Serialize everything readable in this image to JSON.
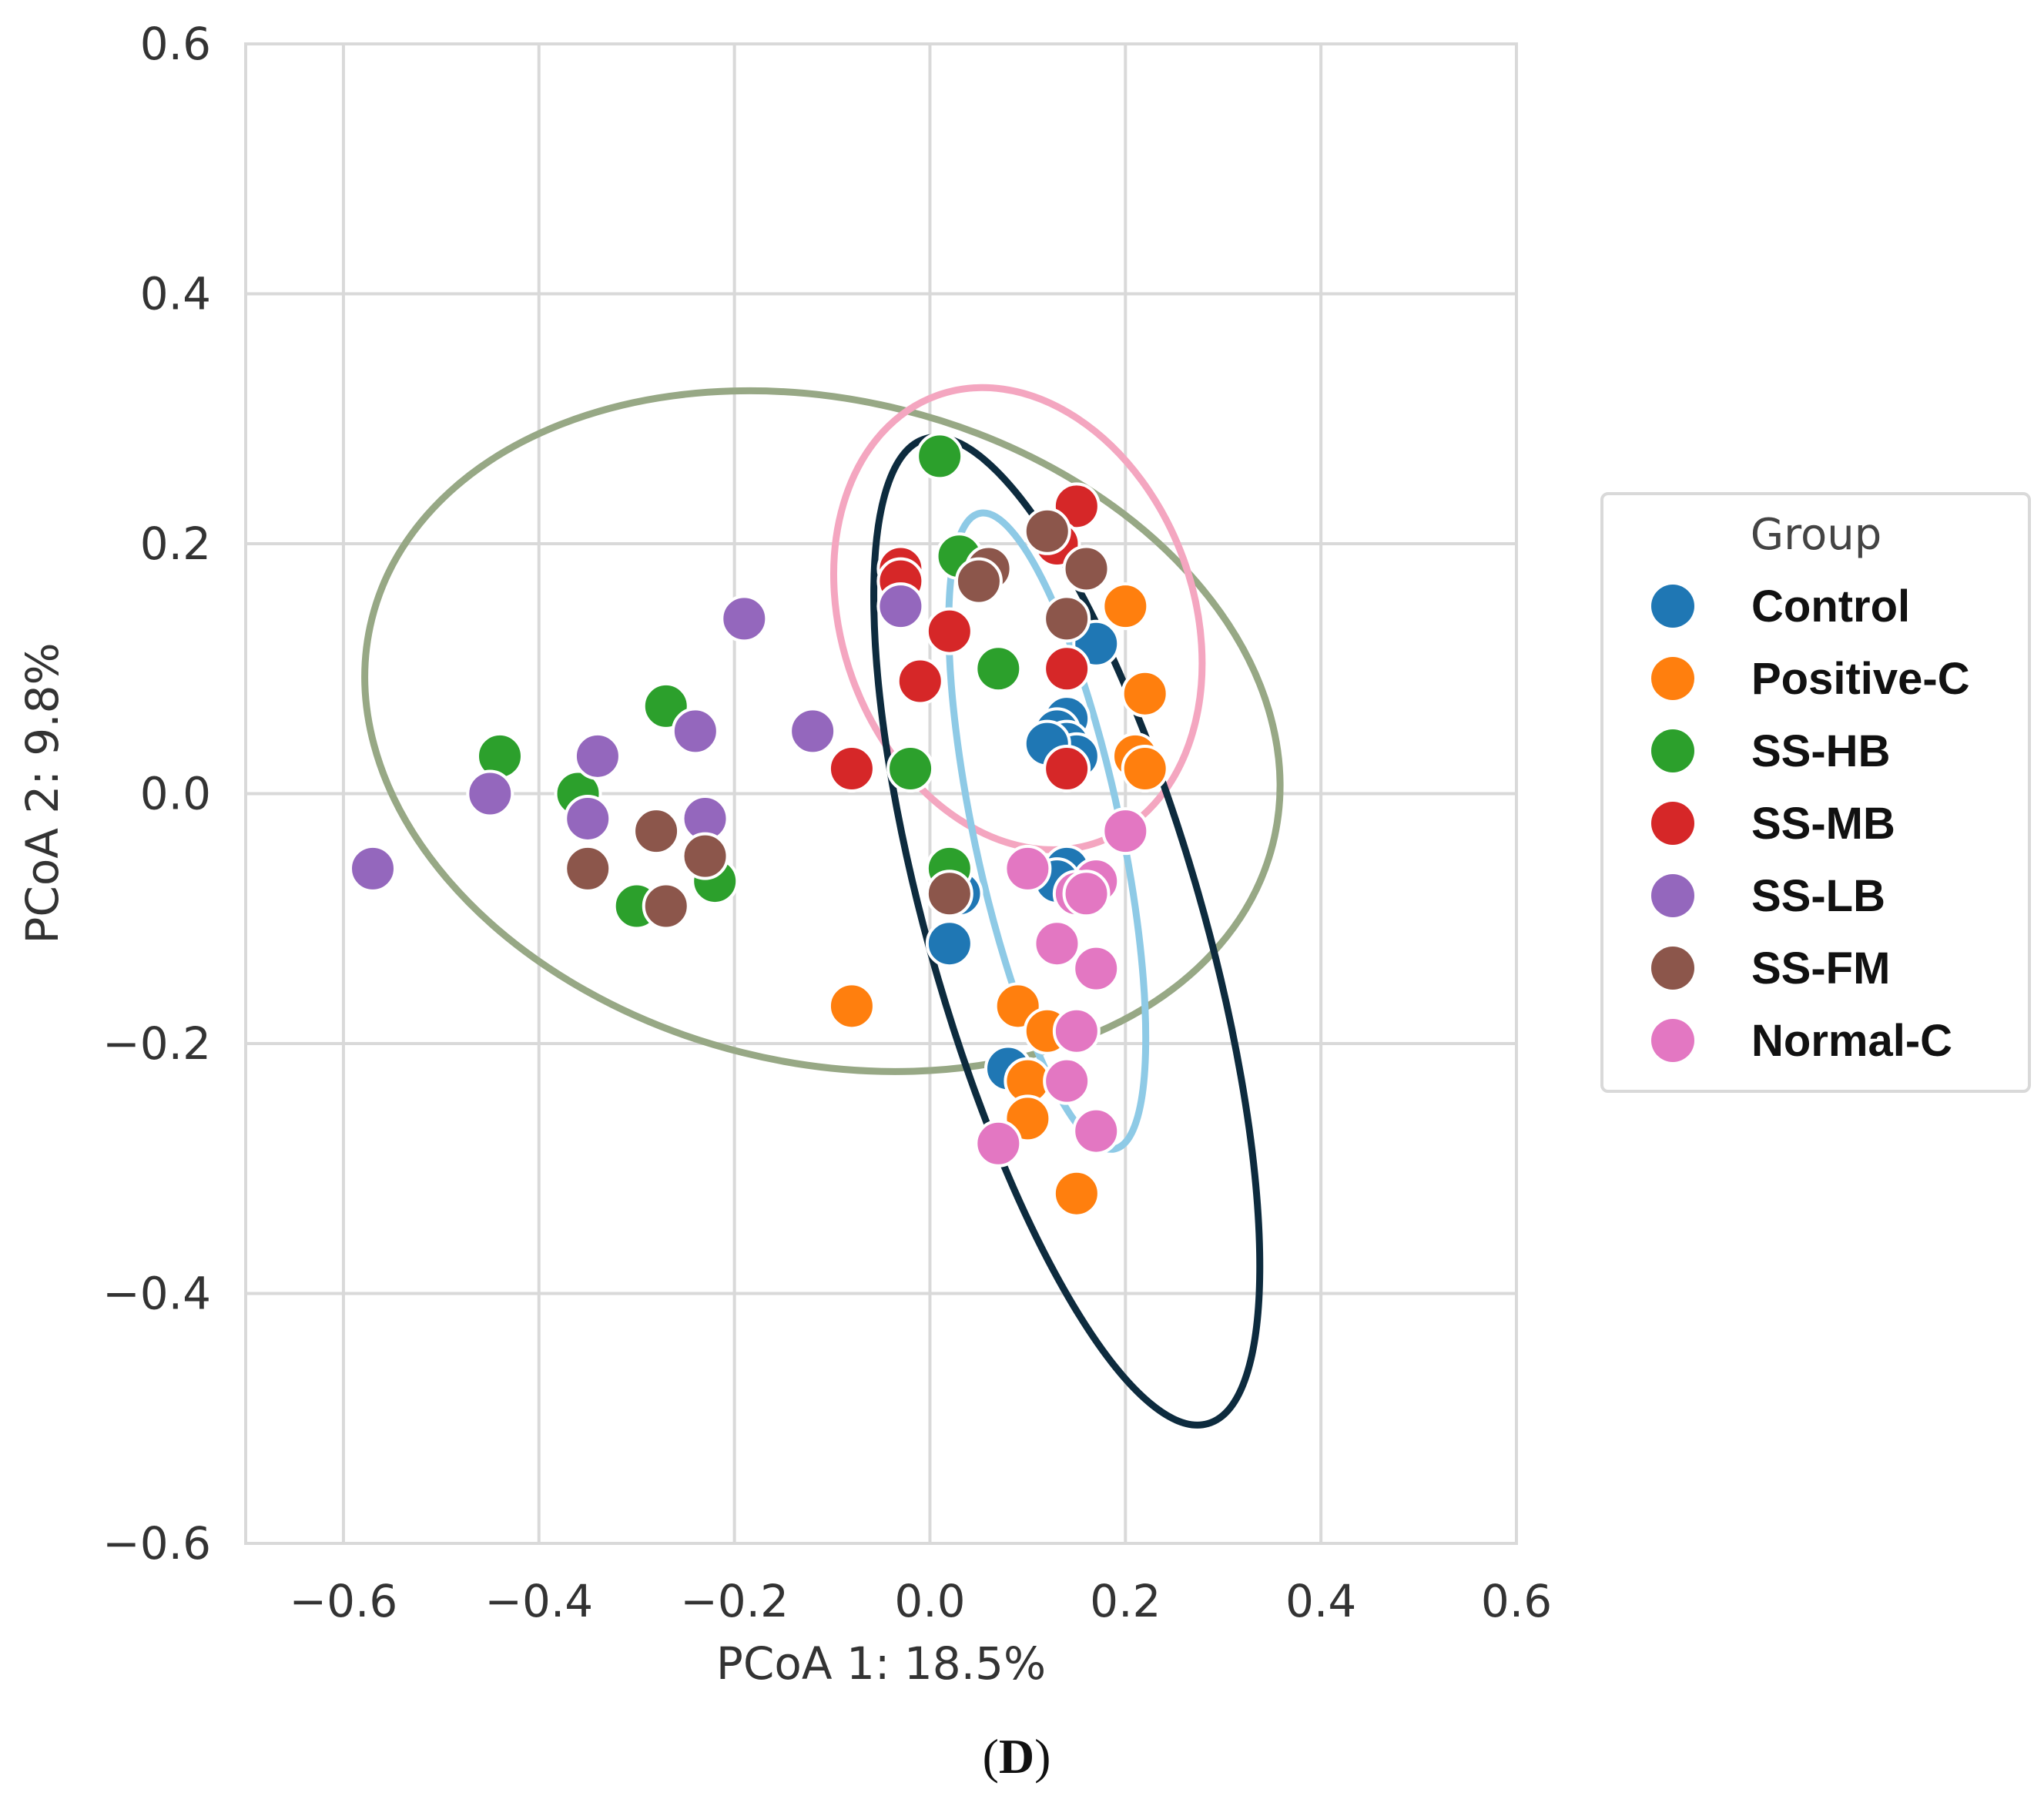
{
  "chart_data": {
    "type": "scatter",
    "title": "",
    "xlabel": "PCoA 1: 18.5%",
    "ylabel": "PCoA 2: 9.8%",
    "xlim": [
      -0.7,
      0.6
    ],
    "ylim": [
      -0.6,
      0.6
    ],
    "x_ticks": [
      -0.6,
      -0.4,
      -0.2,
      0.0,
      0.2,
      0.4,
      0.6
    ],
    "x_tick_labels": [
      "−0.6",
      "−0.4",
      "−0.2",
      "0.0",
      "0.2",
      "0.4",
      "0.6"
    ],
    "y_ticks": [
      0.6,
      0.4,
      0.2,
      0.0,
      -0.2,
      -0.4,
      -0.6
    ],
    "y_tick_labels": [
      "0.6",
      "0.4",
      "0.2",
      "0.0",
      "−0.2",
      "−0.4",
      "−0.6"
    ],
    "grid": true,
    "legend": {
      "title": "Group",
      "position": "right"
    },
    "series": [
      {
        "name": "Control",
        "color": "#1f77b4",
        "points": [
          [
            0.14,
            0.06
          ],
          [
            0.13,
            0.05
          ],
          [
            0.14,
            0.04
          ],
          [
            0.15,
            0.03
          ],
          [
            0.17,
            0.12
          ],
          [
            0.12,
            0.04
          ],
          [
            0.14,
            -0.06
          ],
          [
            0.13,
            -0.07
          ],
          [
            0.02,
            -0.12
          ],
          [
            0.03,
            -0.08
          ],
          [
            0.08,
            -0.22
          ]
        ]
      },
      {
        "name": "Positive-C",
        "color": "#ff7f0e",
        "points": [
          [
            0.2,
            0.15
          ],
          [
            0.22,
            0.08
          ],
          [
            0.21,
            0.03
          ],
          [
            0.22,
            0.02
          ],
          [
            -0.08,
            -0.17
          ],
          [
            0.09,
            -0.17
          ],
          [
            0.12,
            -0.19
          ],
          [
            0.1,
            -0.23
          ],
          [
            0.1,
            -0.26
          ],
          [
            0.15,
            -0.32
          ]
        ]
      },
      {
        "name": "SS-HB",
        "color": "#2ca02c",
        "points": [
          [
            0.01,
            0.27
          ],
          [
            0.03,
            0.19
          ],
          [
            0.07,
            0.1
          ],
          [
            -0.02,
            0.02
          ],
          [
            -0.27,
            0.07
          ],
          [
            -0.44,
            0.03
          ],
          [
            -0.36,
            0.0
          ],
          [
            -0.22,
            -0.07
          ],
          [
            -0.3,
            -0.09
          ],
          [
            0.02,
            -0.06
          ]
        ]
      },
      {
        "name": "SS-MB",
        "color": "#d62728",
        "points": [
          [
            0.15,
            0.23
          ],
          [
            0.13,
            0.2
          ],
          [
            -0.03,
            0.18
          ],
          [
            -0.03,
            0.17
          ],
          [
            0.02,
            0.13
          ],
          [
            -0.01,
            0.09
          ],
          [
            0.14,
            0.1
          ],
          [
            0.14,
            0.02
          ],
          [
            -0.08,
            0.02
          ]
        ]
      },
      {
        "name": "SS-LB",
        "color": "#9467bd",
        "points": [
          [
            -0.19,
            0.14
          ],
          [
            -0.03,
            0.15
          ],
          [
            -0.24,
            0.05
          ],
          [
            -0.12,
            0.05
          ],
          [
            -0.34,
            0.03
          ],
          [
            -0.45,
            0.0
          ],
          [
            -0.23,
            -0.02
          ],
          [
            -0.35,
            -0.02
          ],
          [
            -0.57,
            -0.06
          ]
        ]
      },
      {
        "name": "SS-FM",
        "color": "#8c564b",
        "points": [
          [
            0.12,
            0.21
          ],
          [
            0.06,
            0.18
          ],
          [
            0.05,
            0.17
          ],
          [
            0.16,
            0.18
          ],
          [
            0.14,
            0.14
          ],
          [
            -0.28,
            -0.03
          ],
          [
            -0.23,
            -0.05
          ],
          [
            -0.35,
            -0.06
          ],
          [
            -0.27,
            -0.09
          ],
          [
            0.02,
            -0.08
          ]
        ]
      },
      {
        "name": "Normal-C",
        "color": "#e377c2",
        "points": [
          [
            0.2,
            -0.03
          ],
          [
            0.1,
            -0.06
          ],
          [
            0.17,
            -0.07
          ],
          [
            0.15,
            -0.08
          ],
          [
            0.16,
            -0.08
          ],
          [
            0.13,
            -0.12
          ],
          [
            0.17,
            -0.14
          ],
          [
            0.15,
            -0.19
          ],
          [
            0.14,
            -0.23
          ],
          [
            0.17,
            -0.27
          ],
          [
            0.07,
            -0.28
          ]
        ]
      }
    ],
    "ellipses": [
      {
        "color": "#97a885",
        "center": [
          -0.11,
          0.05
        ],
        "axes": [
          0.475,
          0.265
        ],
        "rotation_deg": 14
      },
      {
        "color": "#f4a6c0",
        "center": [
          0.09,
          0.14
        ],
        "axes": [
          0.18,
          0.19
        ],
        "rotation_deg": -20
      },
      {
        "color": "#0d2b3e",
        "center": [
          0.14,
          -0.11
        ],
        "axes": [
          0.14,
          0.41
        ],
        "rotation_deg": -16
      },
      {
        "color": "#8ecae6",
        "center": [
          0.12,
          -0.03
        ],
        "axes": [
          0.075,
          0.26
        ],
        "rotation_deg": -12
      }
    ]
  },
  "caption": {
    "open": "(",
    "letter": "D",
    "close": ")"
  }
}
